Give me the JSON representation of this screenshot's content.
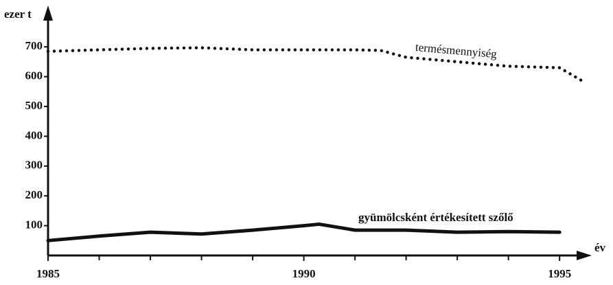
{
  "chart_data": {
    "type": "line",
    "y_label": "ezer t",
    "x_label": "év",
    "x": [
      1985,
      1986,
      1987,
      1988,
      1989,
      1990,
      1990.3,
      1991,
      1991.5,
      1992,
      1993,
      1994,
      1995,
      1995.45
    ],
    "series": [
      {
        "name": "termésmennyiség",
        "color": "#111111",
        "style": "dotted",
        "values": [
          685,
          690,
          695,
          697,
          690,
          690,
          690,
          690,
          688,
          665,
          650,
          635,
          630,
          585
        ]
      },
      {
        "name": "gyümölcsként értékesített szőlő",
        "color": "#111111",
        "style": "solid",
        "values": [
          50,
          65,
          78,
          72,
          85,
          100,
          105,
          85,
          85,
          85,
          78,
          80,
          78,
          null
        ]
      }
    ],
    "xlim": [
      1985,
      1995.4
    ],
    "ylim": [
      0,
      825
    ],
    "xticks": [
      1985,
      1990,
      1995
    ],
    "xminorticks": [
      1986,
      1987,
      1988,
      1989,
      1991,
      1992,
      1993,
      1994
    ],
    "yticks": [
      100,
      200,
      300,
      400,
      500,
      600,
      700
    ],
    "grid": false
  }
}
